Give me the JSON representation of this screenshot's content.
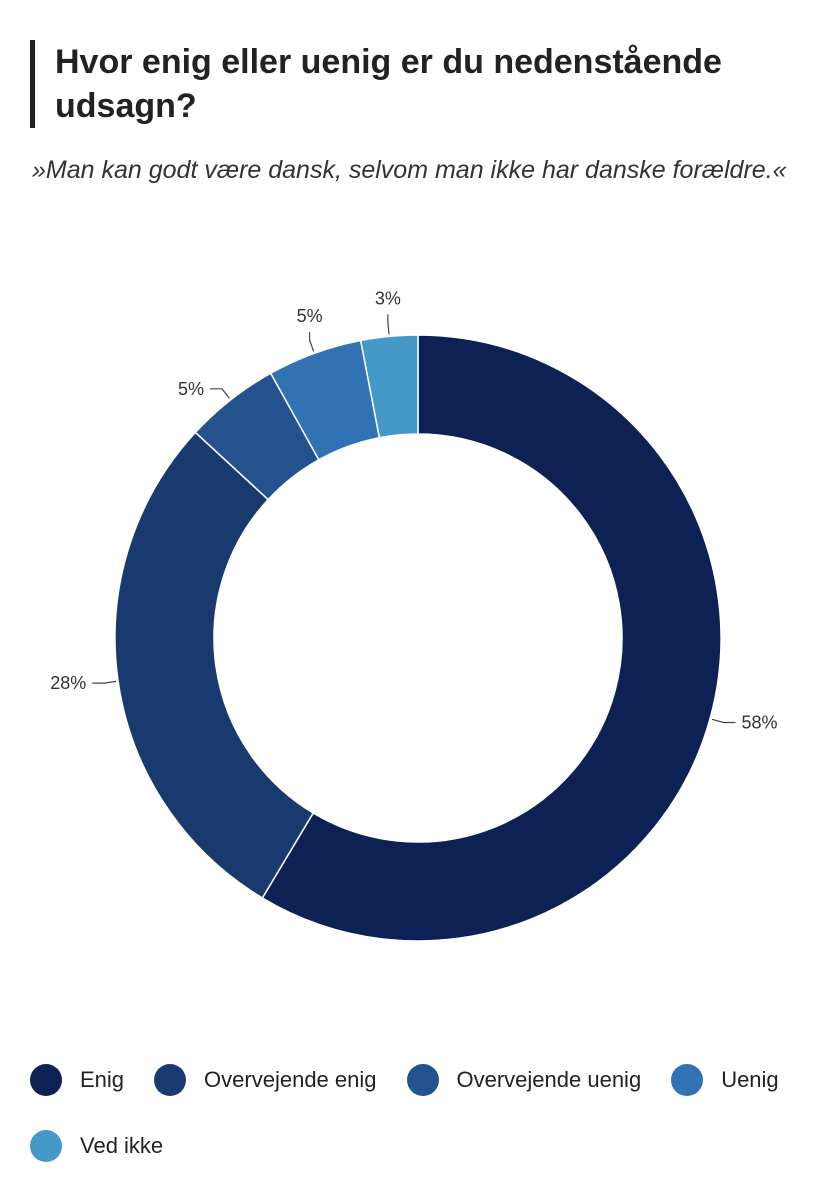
{
  "header": {
    "title": "Hvor enig eller uenig er du nedenstående udsagn?",
    "subtitle": "»Man kan godt være dansk, selvom man ikke har danske forældre.«"
  },
  "chart_data": {
    "type": "pie",
    "donut": true,
    "legend_position": "bottom",
    "slices": [
      {
        "name": "Enig",
        "value": 58,
        "label": "58%",
        "color": "#0d2154"
      },
      {
        "name": "Overvejende enig",
        "value": 28,
        "label": "28%",
        "color": "#193a6e"
      },
      {
        "name": "Overvejende uenig",
        "value": 5,
        "label": "5%",
        "color": "#24528f"
      },
      {
        "name": "Uenig",
        "value": 5,
        "label": "5%",
        "color": "#3072b3"
      },
      {
        "name": "Ved ikke",
        "value": 3,
        "label": "3%",
        "color": "#4499c8"
      }
    ]
  }
}
